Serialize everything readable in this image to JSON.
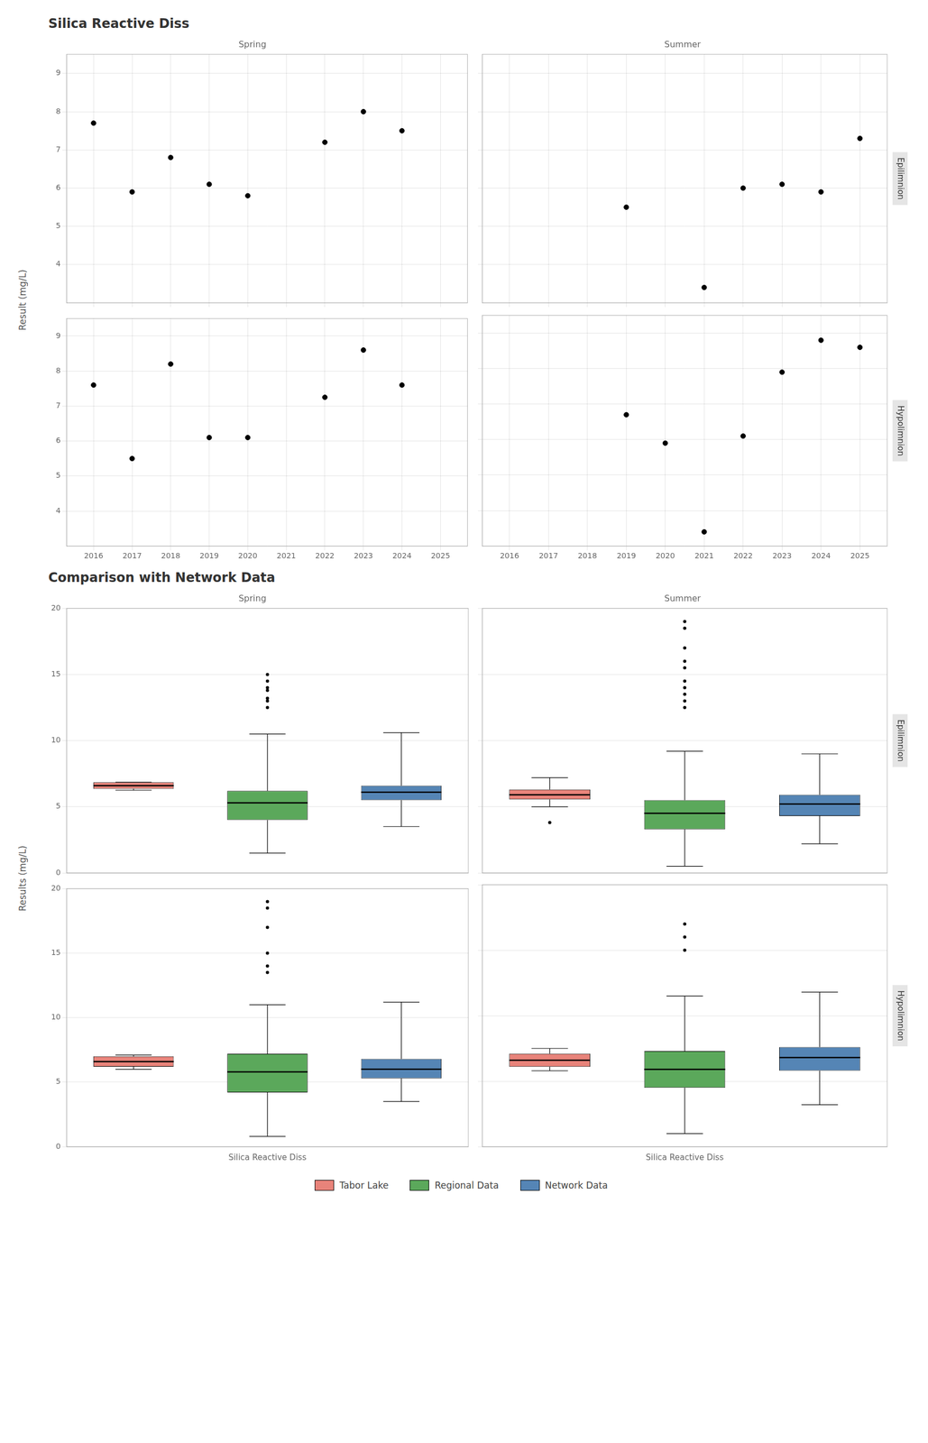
{
  "chart_data": [
    {
      "type": "scatter",
      "title": "Silica Reactive Diss",
      "ylabel": "Result (mg/L)",
      "subtitle": "Spring",
      "x": [
        2016,
        2017,
        2018,
        2019,
        2020,
        2021,
        2022,
        2023,
        2024
      ],
      "values": [
        7.7,
        5.9,
        6.8,
        6.1,
        5.8,
        null,
        7.2,
        8.0,
        7.5
      ],
      "color": "#000000",
      "xlim": [
        2015.3,
        2025.7
      ],
      "xticks": [
        2016,
        2017,
        2018,
        2019,
        2020,
        2021,
        2022,
        2023,
        2024,
        2025
      ],
      "ylim": [
        3.0,
        9.5
      ],
      "yticks": [
        4,
        5,
        6,
        7,
        8,
        9
      ],
      "grid": true,
      "tick_labels": "y"
    },
    {
      "type": "scatter",
      "subtitle": "Summer",
      "annotations": [
        "Epilimnion"
      ],
      "x": [
        2016,
        2017,
        2018,
        2019,
        2020,
        2021,
        2022,
        2023,
        2024,
        2025
      ],
      "values": [
        null,
        null,
        null,
        5.5,
        null,
        3.4,
        6.0,
        6.1,
        5.9,
        7.3
      ],
      "color": "#000000",
      "xlim": [
        2015.3,
        2025.7
      ],
      "xticks": [
        2016,
        2017,
        2018,
        2019,
        2020,
        2021,
        2022,
        2023,
        2024,
        2025
      ],
      "ylim": [
        3.0,
        9.5
      ],
      "yticks": [
        4,
        5,
        6,
        7,
        8,
        9
      ],
      "grid": true,
      "tick_labels": false
    },
    {
      "type": "scatter",
      "x": [
        2016,
        2017,
        2018,
        2019,
        2020,
        2021,
        2022,
        2023,
        2024
      ],
      "values": [
        7.6,
        5.5,
        8.2,
        6.1,
        6.1,
        null,
        7.25,
        8.6,
        7.6
      ],
      "color": "#000000",
      "xlim": [
        2015.3,
        2025.7
      ],
      "xticks": [
        2016,
        2017,
        2018,
        2019,
        2020,
        2021,
        2022,
        2023,
        2024,
        2025
      ],
      "ylim": [
        3.0,
        9.5
      ],
      "yticks": [
        4,
        5,
        6,
        7,
        8,
        9
      ],
      "grid": true
    },
    {
      "type": "scatter",
      "annotations": [
        "Hypolimnion"
      ],
      "x": [
        2016,
        2017,
        2018,
        2019,
        2020,
        2021,
        2022,
        2023,
        2024,
        2025
      ],
      "values": [
        null,
        null,
        null,
        6.7,
        5.9,
        3.4,
        6.1,
        7.9,
        8.8,
        8.6
      ],
      "color": "#000000",
      "xlim": [
        2015.3,
        2025.7
      ],
      "xticks": [
        2016,
        2017,
        2018,
        2019,
        2020,
        2021,
        2022,
        2023,
        2024,
        2025
      ],
      "ylim": [
        3.0,
        9.5
      ],
      "yticks": [
        4,
        5,
        6,
        7,
        8,
        9
      ],
      "grid": true,
      "tick_labels": "x"
    },
    {
      "type": "box",
      "title": "Comparison with Network Data",
      "ylabel": "Results (mg/L)",
      "subtitle": "Spring",
      "series": [
        {
          "name": "Tabor Lake",
          "color": "#E8837A",
          "med": 6.6,
          "q1": 6.35,
          "q3": 6.85,
          "whislo": 6.25,
          "whishi": 6.85,
          "fliers": []
        },
        {
          "name": "Regional Data",
          "color": "#5BA85B",
          "med": 5.3,
          "q1": 4.0,
          "q3": 6.2,
          "whislo": 1.5,
          "whishi": 10.5,
          "fliers": [
            14.5,
            13.8,
            13.2,
            15.0,
            14.0,
            13.0,
            12.5
          ]
        },
        {
          "name": "Network Data",
          "color": "#5585B5",
          "med": 6.1,
          "q1": 5.5,
          "q3": 6.6,
          "whislo": 3.5,
          "whishi": 10.6,
          "fliers": []
        }
      ],
      "ylim": [
        0,
        20
      ],
      "yticks": [
        0,
        5,
        10,
        15,
        20
      ],
      "grid": "y",
      "tick_labels": "y"
    },
    {
      "type": "box",
      "subtitle": "Summer",
      "annotations": [
        "Epilimnion"
      ],
      "series": [
        {
          "name": "Tabor Lake",
          "color": "#E8837A",
          "med": 5.9,
          "q1": 5.55,
          "q3": 6.3,
          "whislo": 5.0,
          "whishi": 7.2,
          "fliers": [
            3.8
          ]
        },
        {
          "name": "Regional Data",
          "color": "#5BA85B",
          "med": 4.5,
          "q1": 3.3,
          "q3": 5.5,
          "whislo": 0.5,
          "whishi": 9.2,
          "fliers": [
            13.5,
            14.0,
            15.5,
            17.0,
            19.0,
            18.5,
            16.0,
            14.5,
            12.5,
            13.0
          ]
        },
        {
          "name": "Network Data",
          "color": "#5585B5",
          "med": 5.2,
          "q1": 4.3,
          "q3": 5.9,
          "whislo": 2.2,
          "whishi": 9.0,
          "fliers": []
        }
      ],
      "ylim": [
        0,
        20
      ],
      "yticks": [
        0,
        5,
        10,
        15,
        20
      ],
      "grid": "y",
      "tick_labels": false
    },
    {
      "type": "box",
      "xlabel": "Silica Reactive Diss",
      "series": [
        {
          "name": "Tabor Lake",
          "color": "#E8837A",
          "med": 6.6,
          "q1": 6.2,
          "q3": 7.0,
          "whislo": 6.0,
          "whishi": 7.1,
          "fliers": []
        },
        {
          "name": "Regional Data",
          "color": "#5BA85B",
          "med": 5.8,
          "q1": 4.2,
          "q3": 7.2,
          "whislo": 0.8,
          "whishi": 11.0,
          "fliers": [
            19.0,
            18.5,
            17.0,
            15.0,
            14.0,
            13.5
          ]
        },
        {
          "name": "Network Data",
          "color": "#5585B5",
          "med": 6.0,
          "q1": 5.3,
          "q3": 6.8,
          "whislo": 3.5,
          "whishi": 11.2,
          "fliers": []
        }
      ],
      "ylim": [
        0,
        20
      ],
      "yticks": [
        0,
        5,
        10,
        15,
        20
      ],
      "grid": "y",
      "tick_labels": "y"
    },
    {
      "type": "box",
      "xlabel": "Silica Reactive Diss",
      "annotations": [
        "Hypolimnion"
      ],
      "legend": "bottom",
      "series": [
        {
          "name": "Tabor Lake",
          "color": "#E8837A",
          "med": 6.6,
          "q1": 6.1,
          "q3": 7.1,
          "whislo": 5.8,
          "whishi": 7.5,
          "fliers": []
        },
        {
          "name": "Regional Data",
          "color": "#5BA85B",
          "med": 5.9,
          "q1": 4.5,
          "q3": 7.3,
          "whislo": 1.0,
          "whishi": 11.5,
          "fliers": [
            15.0,
            16.0,
            17.0
          ]
        },
        {
          "name": "Network Data",
          "color": "#5585B5",
          "med": 6.8,
          "q1": 5.8,
          "q3": 7.6,
          "whislo": 3.2,
          "whishi": 11.8,
          "fliers": []
        }
      ],
      "ylim": [
        0,
        20
      ],
      "yticks": [
        0,
        5,
        10,
        15,
        20
      ],
      "grid": "y",
      "tick_labels": false
    }
  ]
}
